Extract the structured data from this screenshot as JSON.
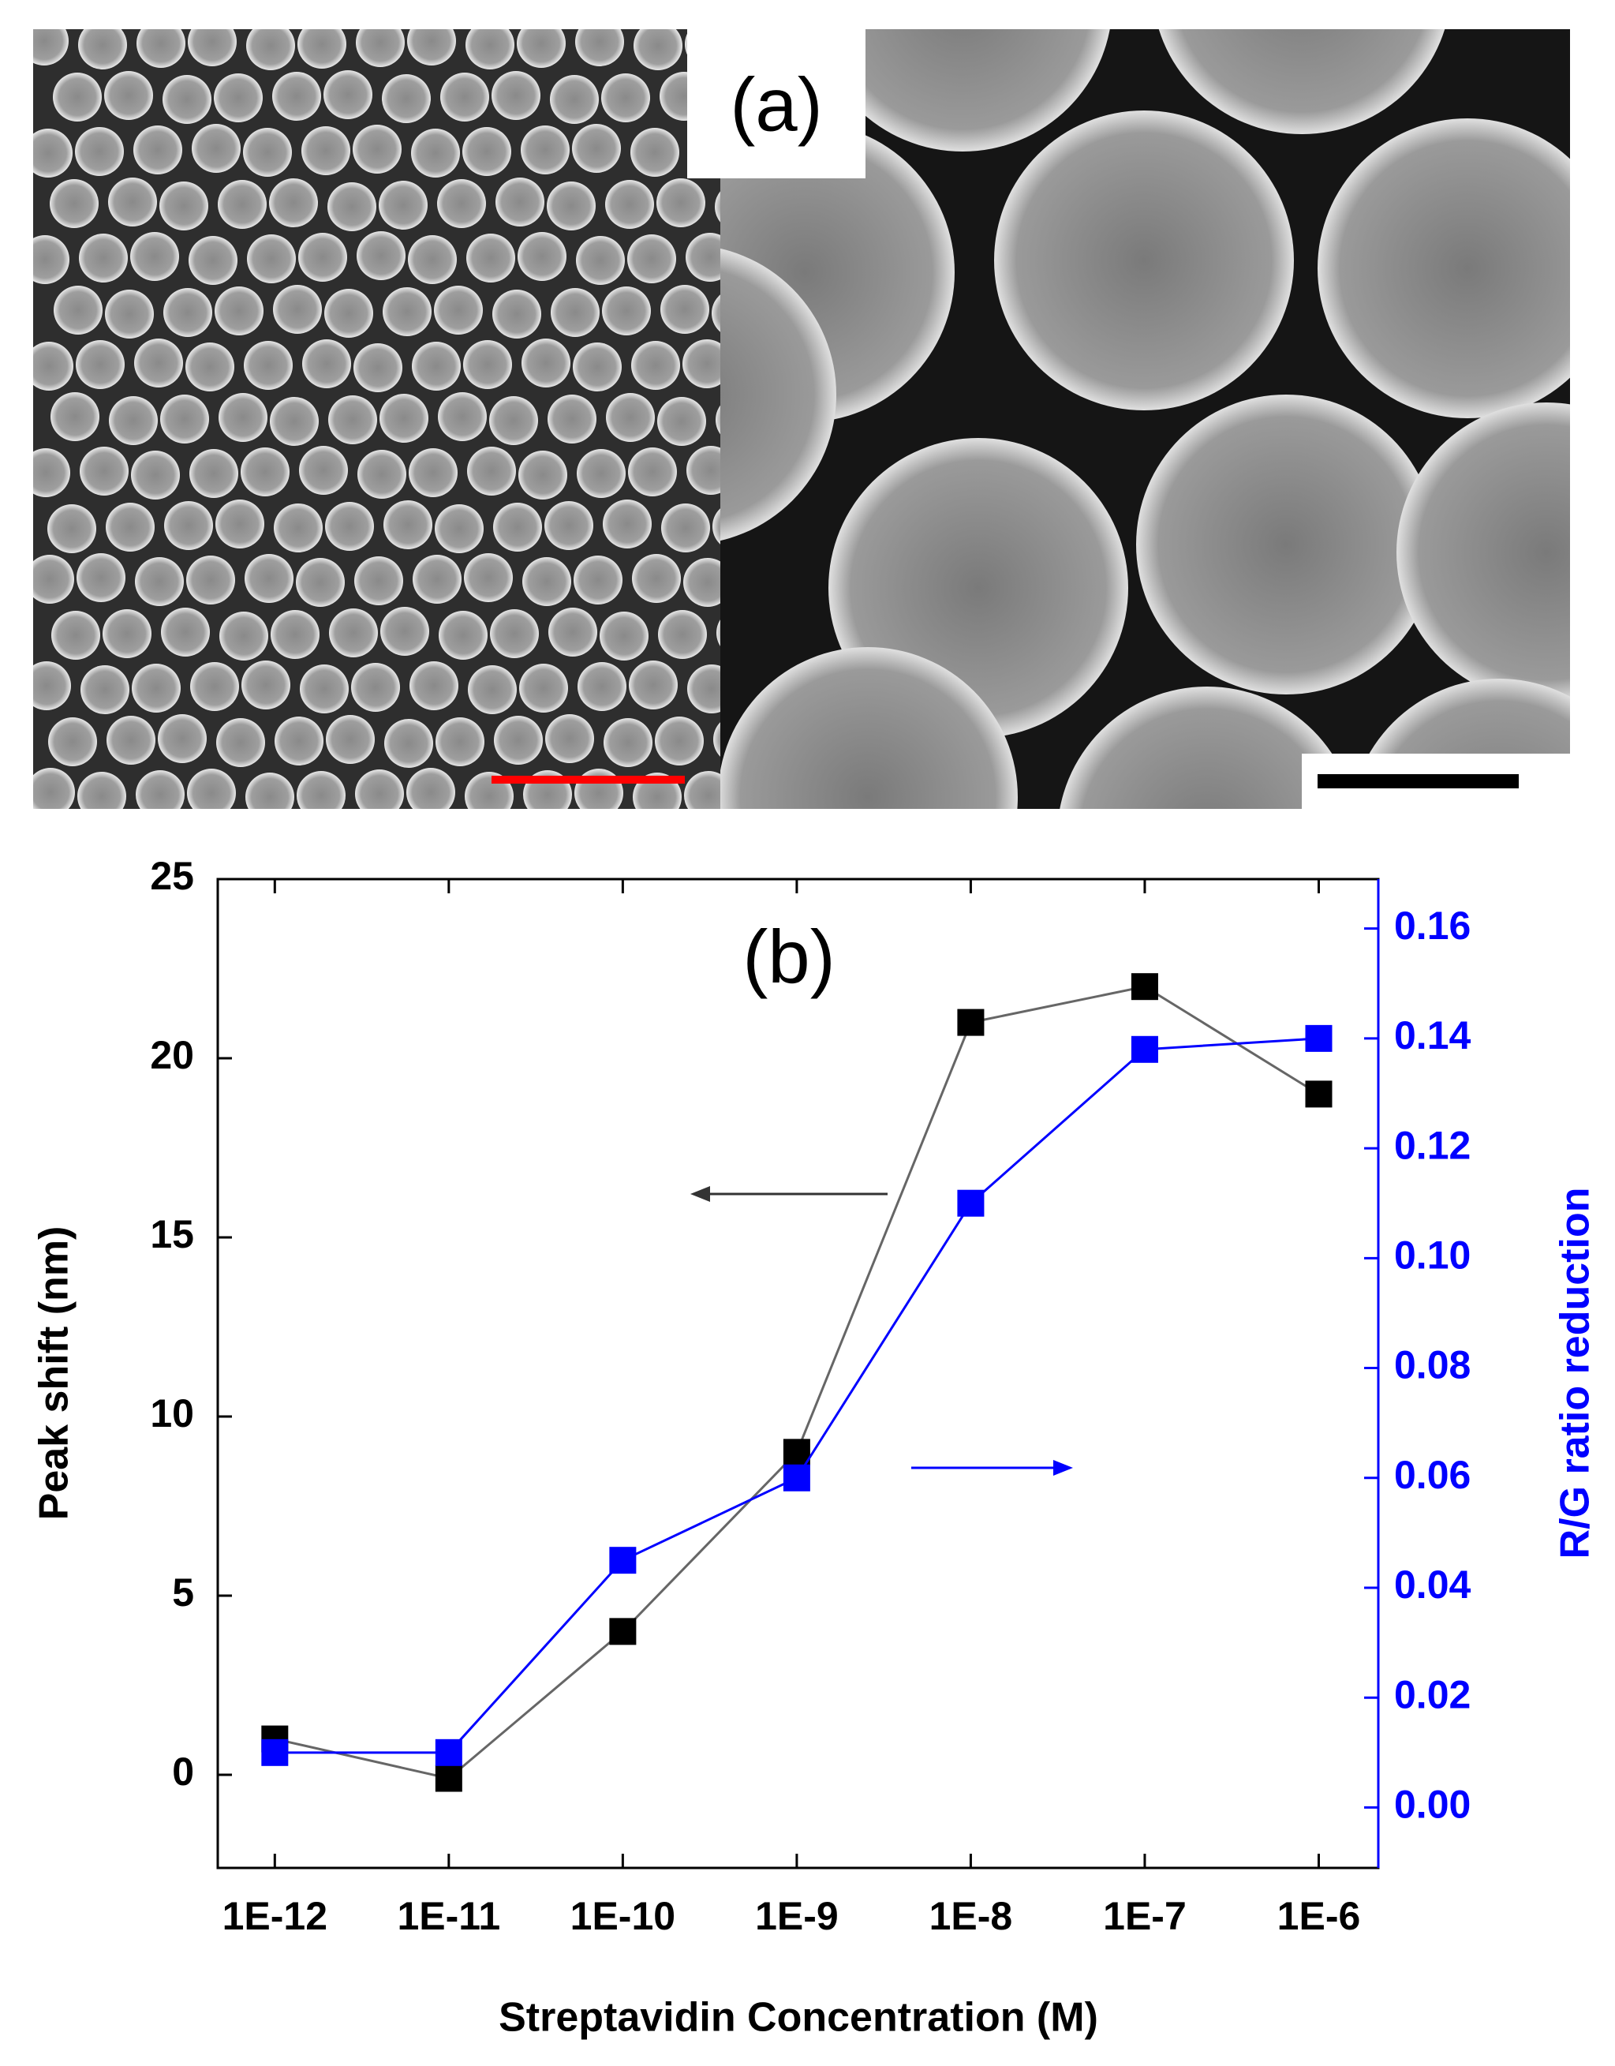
{
  "panel_a": "(a)",
  "chart_data": {
    "type": "line",
    "annotation": "(b)",
    "xlabel": "Streptavidin Concentration (M)",
    "ylabel": "Peak shift (nm)",
    "y2label": "R/G ratio reduction",
    "x": [
      1e-12,
      1e-11,
      1e-10,
      1e-09,
      1e-08,
      1e-07,
      1e-06
    ],
    "xscale": "log",
    "xlim": [
      4.7e-13,
      2.2e-06
    ],
    "xticks": [
      {
        "value": 1e-12,
        "label": "1E-12"
      },
      {
        "value": 1e-11,
        "label": "1E-11"
      },
      {
        "value": 1e-10,
        "label": "1E-10"
      },
      {
        "value": 1e-09,
        "label": "1E-9"
      },
      {
        "value": 1e-08,
        "label": "1E-8"
      },
      {
        "value": 1e-07,
        "label": "1E-7"
      },
      {
        "value": 1e-06,
        "label": "1E-6"
      }
    ],
    "ylim": [
      -2.6,
      25
    ],
    "yticks": [
      0,
      5,
      10,
      15,
      20,
      25
    ],
    "y2lim": [
      -0.011,
      0.169
    ],
    "y2ticks": [
      {
        "value": 0,
        "label": "0.00"
      },
      {
        "value": 0.02,
        "label": "0.02"
      },
      {
        "value": 0.04,
        "label": "0.04"
      },
      {
        "value": 0.06,
        "label": "0.06"
      },
      {
        "value": 0.08,
        "label": "0.08"
      },
      {
        "value": 0.1,
        "label": "0.10"
      },
      {
        "value": 0.12,
        "label": "0.12"
      },
      {
        "value": 0.14,
        "label": "0.14"
      },
      {
        "value": 0.16,
        "label": "0.16"
      }
    ],
    "y2color": "#0000ff",
    "series": [
      {
        "color": "#000000",
        "values": [
          1,
          -0.1,
          4,
          9,
          21,
          22,
          19
        ]
      },
      {
        "color": "#0000ff",
        "axis": "y2",
        "values": [
          0.01,
          0.01,
          0.045,
          0.06,
          0.11,
          0.138,
          0.14
        ]
      }
    ]
  }
}
